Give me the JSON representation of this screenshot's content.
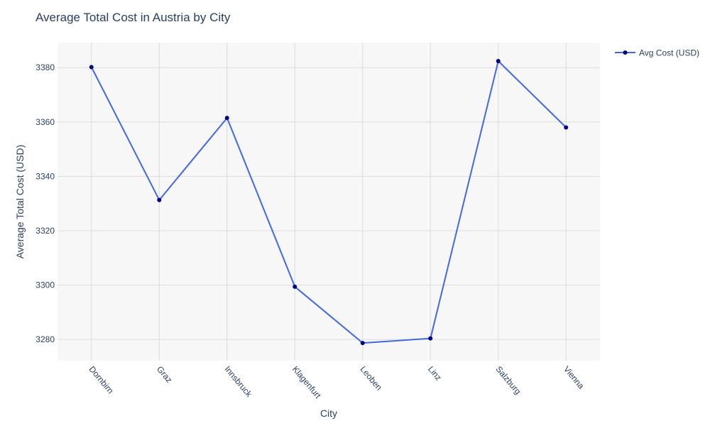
{
  "chart_data": {
    "type": "line",
    "title": "Average Total Cost in Austria by City",
    "xlabel": "City",
    "ylabel": "Average Total Cost (USD)",
    "categories": [
      "Dornbirn",
      "Graz",
      "Innsbruck",
      "Klagenfurt",
      "Leoben",
      "Linz",
      "Salzburg",
      "Vienna"
    ],
    "series": [
      {
        "name": "Avg Cost (USD)",
        "values": [
          3380.2,
          3331.3,
          3361.5,
          3299.4,
          3278.7,
          3280.4,
          3382.4,
          3358.0
        ]
      }
    ],
    "ylim": [
      3272.2,
      3389.2
    ],
    "yticks": [
      3280,
      3300,
      3320,
      3340,
      3360,
      3380
    ],
    "grid": true,
    "legend_position": "top-right",
    "colors": {
      "line": "#4169e1",
      "marker": "#000080",
      "plot_bg": "#f7f7f7",
      "grid": "#dcdcdc"
    }
  }
}
